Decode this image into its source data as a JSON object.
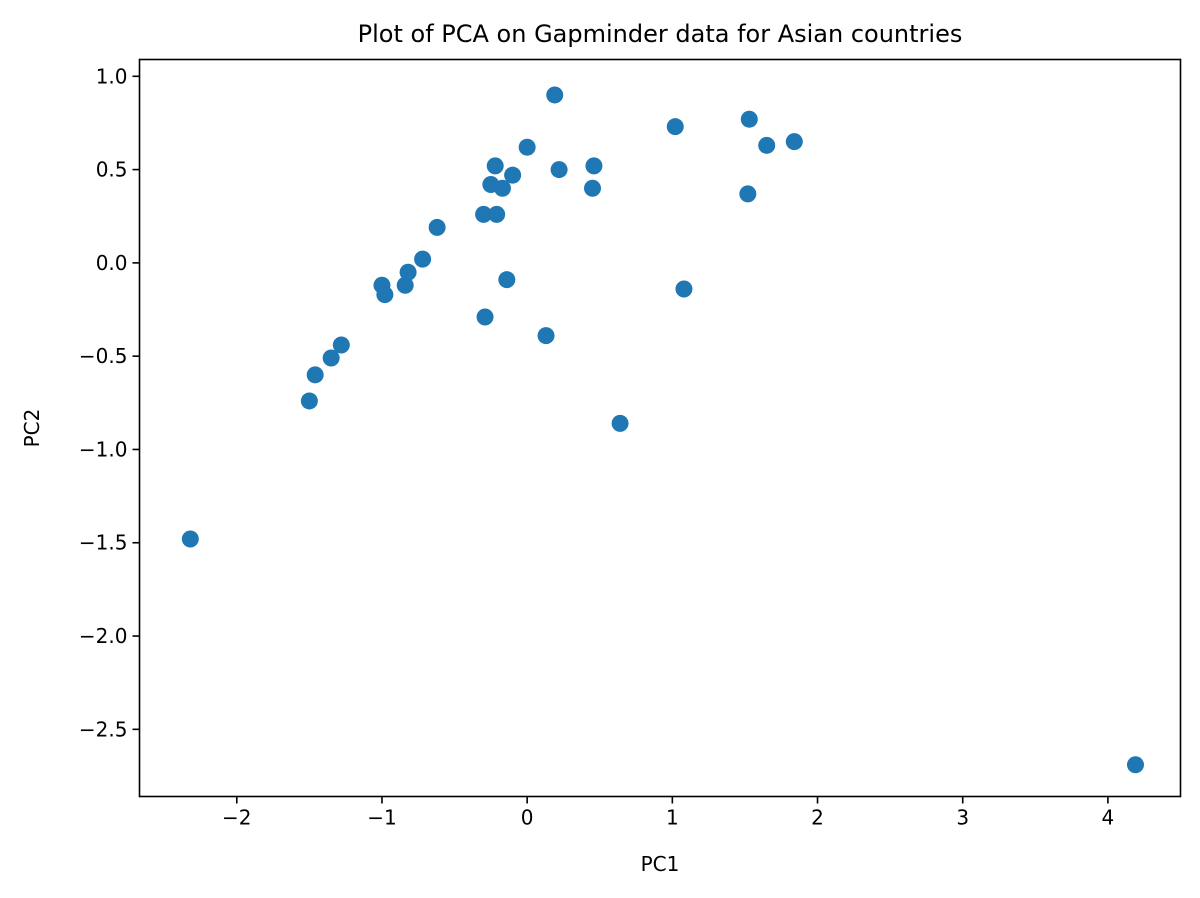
{
  "chart_data": {
    "type": "scatter",
    "title": "Plot of PCA on Gapminder data for Asian countries",
    "xlabel": "PC1",
    "ylabel": "PC2",
    "xlim": [
      -2.67,
      4.5
    ],
    "ylim": [
      -2.86,
      1.09
    ],
    "xticks": [
      -2,
      -1,
      0,
      1,
      2,
      3,
      4
    ],
    "yticks": [
      -2.5,
      -2.0,
      -1.5,
      -1.0,
      -0.5,
      0.0,
      0.5,
      1.0
    ],
    "xtick_labels": [
      "−2",
      "−1",
      "0",
      "1",
      "2",
      "3",
      "4"
    ],
    "ytick_labels": [
      "−2.5",
      "−2.0",
      "−1.5",
      "−1.0",
      "−0.5",
      "0.0",
      "0.5",
      "1.0"
    ],
    "grid": false,
    "marker_color": "#1f77b4",
    "series": [
      {
        "points": [
          {
            "x": -2.32,
            "y": -1.48
          },
          {
            "x": -1.5,
            "y": -0.74
          },
          {
            "x": -1.46,
            "y": -0.6
          },
          {
            "x": -1.35,
            "y": -0.51
          },
          {
            "x": -1.28,
            "y": -0.44
          },
          {
            "x": -1.0,
            "y": -0.12
          },
          {
            "x": -0.98,
            "y": -0.17
          },
          {
            "x": -0.84,
            "y": -0.12
          },
          {
            "x": -0.82,
            "y": -0.05
          },
          {
            "x": -0.72,
            "y": 0.02
          },
          {
            "x": -0.62,
            "y": 0.19
          },
          {
            "x": -0.3,
            "y": 0.26
          },
          {
            "x": -0.21,
            "y": 0.26
          },
          {
            "x": -0.29,
            "y": -0.29
          },
          {
            "x": -0.25,
            "y": 0.42
          },
          {
            "x": -0.22,
            "y": 0.52
          },
          {
            "x": -0.17,
            "y": 0.4
          },
          {
            "x": -0.1,
            "y": 0.47
          },
          {
            "x": -0.14,
            "y": -0.09
          },
          {
            "x": 0.0,
            "y": 0.62
          },
          {
            "x": 0.13,
            "y": -0.39
          },
          {
            "x": 0.19,
            "y": 0.9
          },
          {
            "x": 0.22,
            "y": 0.5
          },
          {
            "x": 0.45,
            "y": 0.4
          },
          {
            "x": 0.46,
            "y": 0.52
          },
          {
            "x": 0.64,
            "y": -0.86
          },
          {
            "x": 1.02,
            "y": 0.73
          },
          {
            "x": 1.08,
            "y": -0.14
          },
          {
            "x": 1.52,
            "y": 0.37
          },
          {
            "x": 1.53,
            "y": 0.77
          },
          {
            "x": 1.65,
            "y": 0.63
          },
          {
            "x": 1.84,
            "y": 0.65
          },
          {
            "x": 4.19,
            "y": -2.69
          }
        ]
      }
    ]
  }
}
